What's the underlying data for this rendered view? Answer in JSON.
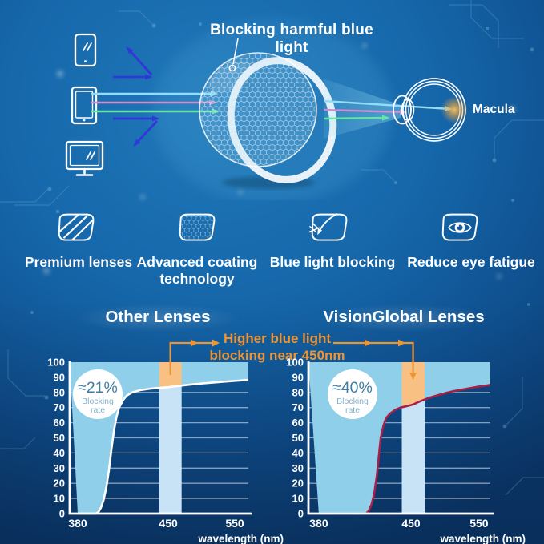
{
  "hero": {
    "title": "Blocking harmful blue light",
    "macula_label": "Macula",
    "device_icons": [
      "smartphone-icon",
      "tablet-icon",
      "monitor-icon"
    ],
    "ray_colors": {
      "reflected_blue": "#3138d8",
      "cyan": "#93dcf5",
      "violet": "#cb8ecf",
      "green": "#62e6a4",
      "macula_glow": "#f5a93f"
    }
  },
  "features": [
    {
      "icon": "premium-lens-icon",
      "label": "Premium lenses"
    },
    {
      "icon": "coating-lens-icon",
      "label": "Advanced coating technology"
    },
    {
      "icon": "blue-light-blocking-icon",
      "label": "Blue light blocking"
    },
    {
      "icon": "eye-fatigue-icon",
      "label": "Reduce eye fatigue"
    }
  ],
  "comparison": {
    "annotation_line1": "Higher blue light",
    "annotation_line2": "blocking near 450nm",
    "annotation_color": "#ee9434"
  },
  "chart_data": [
    {
      "type": "area",
      "title": "Other Lenses",
      "curve_color": "#ffffff",
      "fill_color": "#90cfe9",
      "band": {
        "nm_range": [
          443,
          470
        ],
        "below_curve_color": "#c7e3f5",
        "above_curve_color": "#f8c083"
      },
      "badge": {
        "value": "≈21%",
        "caption_line1": "Blocking",
        "caption_line2": "rate"
      },
      "axis": {
        "xlabel": "wavelength (nm)",
        "x_ticks": [
          380,
          450,
          550
        ],
        "y_ticks": [
          0,
          10,
          20,
          30,
          40,
          50,
          60,
          70,
          80,
          90,
          100
        ],
        "ylim": [
          0,
          100
        ],
        "grid": true
      },
      "x_scale_anchors": [
        [
          380,
          0.045
        ],
        [
          450,
          0.552
        ],
        [
          550,
          0.924
        ],
        [
          572,
          1.0
        ]
      ],
      "pointer_nm": 453,
      "points": [
        [
          380,
          0
        ],
        [
          394,
          0
        ],
        [
          396,
          1
        ],
        [
          398,
          4
        ],
        [
          400,
          9
        ],
        [
          402,
          17
        ],
        [
          404,
          28
        ],
        [
          406,
          42
        ],
        [
          408,
          55
        ],
        [
          410,
          64
        ],
        [
          412,
          70
        ],
        [
          415,
          75
        ],
        [
          418,
          78
        ],
        [
          422,
          80
        ],
        [
          428,
          81.5
        ],
        [
          436,
          82.5
        ],
        [
          450,
          83.5
        ],
        [
          465,
          84.3
        ],
        [
          485,
          85.3
        ],
        [
          510,
          86.3
        ],
        [
          540,
          87.3
        ],
        [
          572,
          88.3
        ]
      ]
    },
    {
      "type": "area",
      "title": "VisionGlobal Lenses",
      "curve_color": "#a62049",
      "fill_color": "#90cfe9",
      "band": {
        "nm_range": [
          443,
          470
        ],
        "below_curve_color": "#c7e3f5",
        "above_curve_color": "#f8c083"
      },
      "badge": {
        "value": "≈40%",
        "caption_line1": "Blocking",
        "caption_line2": "rate"
      },
      "axis": {
        "xlabel": "wavelength (nm)",
        "x_ticks": [
          380,
          450,
          550
        ],
        "y_ticks": [
          0,
          10,
          20,
          30,
          40,
          50,
          60,
          70,
          80,
          90,
          100
        ],
        "ylim": [
          0,
          100
        ],
        "grid": true
      },
      "x_scale_anchors": [
        [
          380,
          0.057
        ],
        [
          450,
          0.564
        ],
        [
          550,
          0.938
        ],
        [
          572,
          1.0
        ]
      ],
      "pointer_nm": 453,
      "points": [
        [
          380,
          0
        ],
        [
          416,
          0
        ],
        [
          418,
          2
        ],
        [
          420,
          6
        ],
        [
          422,
          13
        ],
        [
          424,
          25
        ],
        [
          425,
          33
        ],
        [
          426,
          42
        ],
        [
          427,
          50
        ],
        [
          429,
          58
        ],
        [
          431,
          63
        ],
        [
          434,
          66
        ],
        [
          438,
          68.5
        ],
        [
          442,
          70
        ],
        [
          447,
          71
        ],
        [
          453,
          72
        ],
        [
          460,
          73.5
        ],
        [
          468,
          75
        ],
        [
          477,
          76.5
        ],
        [
          488,
          78
        ],
        [
          500,
          79.5
        ],
        [
          514,
          81
        ],
        [
          532,
          82.5
        ],
        [
          552,
          84
        ],
        [
          572,
          85
        ]
      ]
    }
  ]
}
